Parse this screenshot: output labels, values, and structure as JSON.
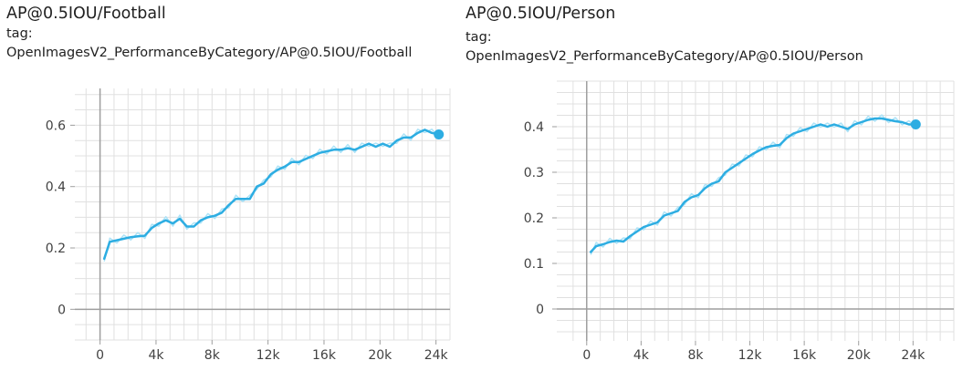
{
  "charts": [
    {
      "title": "AP@0.5IOU/Football",
      "tag_label": "tag:",
      "tag_value": "OpenImagesV2_PerformanceByCategory/AP@0.5IOU/Football"
    },
    {
      "title": "AP@0.5IOU/Person",
      "tag_label": "tag:",
      "tag_value": "OpenImagesV2_PerformanceByCategory/AP@0.5IOU/Person"
    }
  ],
  "colors": {
    "line": "#2dade2",
    "line_raw": "#aee3f7",
    "axis": "#9e9e9e",
    "grid": "#e0e0e0"
  },
  "chart_data": [
    {
      "type": "line",
      "title": "AP@0.5IOU/Football",
      "xlabel": "",
      "ylabel": "",
      "xlim": [
        -1800,
        25000
      ],
      "ylim": [
        -0.1,
        0.72
      ],
      "x_ticks": [
        0,
        4000,
        8000,
        12000,
        16000,
        20000,
        24000
      ],
      "x_tick_labels": [
        "0",
        "4k",
        "8k",
        "12k",
        "16k",
        "20k",
        "24k"
      ],
      "y_ticks": [
        0,
        0.2,
        0.4,
        0.6
      ],
      "y_tick_labels": [
        "0",
        "0.2",
        "0.4",
        "0.6"
      ],
      "grid": true,
      "series": [
        {
          "x": [
            300,
            700,
            1200,
            1700,
            2200,
            2700,
            3200,
            3700,
            4200,
            4700,
            5200,
            5700,
            6200,
            6700,
            7200,
            7700,
            8200,
            8700,
            9200,
            9700,
            10200,
            10700,
            11200,
            11700,
            12200,
            12700,
            13200,
            13700,
            14200,
            14700,
            15200,
            15700,
            16200,
            16700,
            17200,
            17700,
            18200,
            18700,
            19200,
            19700,
            20200,
            20700,
            21200,
            21700,
            22200,
            22700,
            23200,
            23700,
            24200
          ],
          "y": [
            0.165,
            0.22,
            0.225,
            0.23,
            0.235,
            0.238,
            0.24,
            0.265,
            0.28,
            0.29,
            0.28,
            0.295,
            0.27,
            0.27,
            0.29,
            0.3,
            0.305,
            0.315,
            0.34,
            0.36,
            0.36,
            0.36,
            0.4,
            0.41,
            0.44,
            0.455,
            0.465,
            0.48,
            0.48,
            0.49,
            0.5,
            0.51,
            0.515,
            0.52,
            0.52,
            0.525,
            0.52,
            0.53,
            0.54,
            0.53,
            0.54,
            0.53,
            0.55,
            0.56,
            0.56,
            0.575,
            0.585,
            0.575,
            0.57
          ]
        }
      ]
    },
    {
      "type": "line",
      "title": "AP@0.5IOU/Person",
      "xlabel": "",
      "ylabel": "",
      "xlim": [
        -2200,
        27000
      ],
      "ylim": [
        -0.07,
        0.5
      ],
      "x_ticks": [
        0,
        4000,
        8000,
        12000,
        16000,
        20000,
        24000
      ],
      "x_tick_labels": [
        "0",
        "4k",
        "8k",
        "12k",
        "16k",
        "20k",
        "24k"
      ],
      "y_ticks": [
        0,
        0.1,
        0.2,
        0.3,
        0.4
      ],
      "y_tick_labels": [
        "0",
        "0.1",
        "0.2",
        "0.3",
        "0.4"
      ],
      "grid": true,
      "series": [
        {
          "x": [
            300,
            700,
            1200,
            1700,
            2200,
            2700,
            3200,
            3700,
            4200,
            4700,
            5200,
            5700,
            6200,
            6700,
            7200,
            7700,
            8200,
            8700,
            9200,
            9700,
            10200,
            10700,
            11200,
            11700,
            12200,
            12700,
            13200,
            13700,
            14200,
            14700,
            15200,
            15700,
            16200,
            16700,
            17200,
            17700,
            18200,
            18700,
            19200,
            19700,
            20200,
            20700,
            21200,
            21700,
            22200,
            22700,
            23200,
            23700,
            24200
          ],
          "y": [
            0.125,
            0.138,
            0.142,
            0.147,
            0.15,
            0.148,
            0.16,
            0.17,
            0.18,
            0.185,
            0.19,
            0.205,
            0.21,
            0.215,
            0.235,
            0.245,
            0.25,
            0.265,
            0.275,
            0.28,
            0.3,
            0.31,
            0.32,
            0.33,
            0.34,
            0.348,
            0.355,
            0.358,
            0.36,
            0.375,
            0.385,
            0.39,
            0.395,
            0.4,
            0.405,
            0.4,
            0.405,
            0.4,
            0.395,
            0.405,
            0.41,
            0.415,
            0.418,
            0.418,
            0.415,
            0.412,
            0.41,
            0.405,
            0.405
          ]
        }
      ]
    }
  ]
}
